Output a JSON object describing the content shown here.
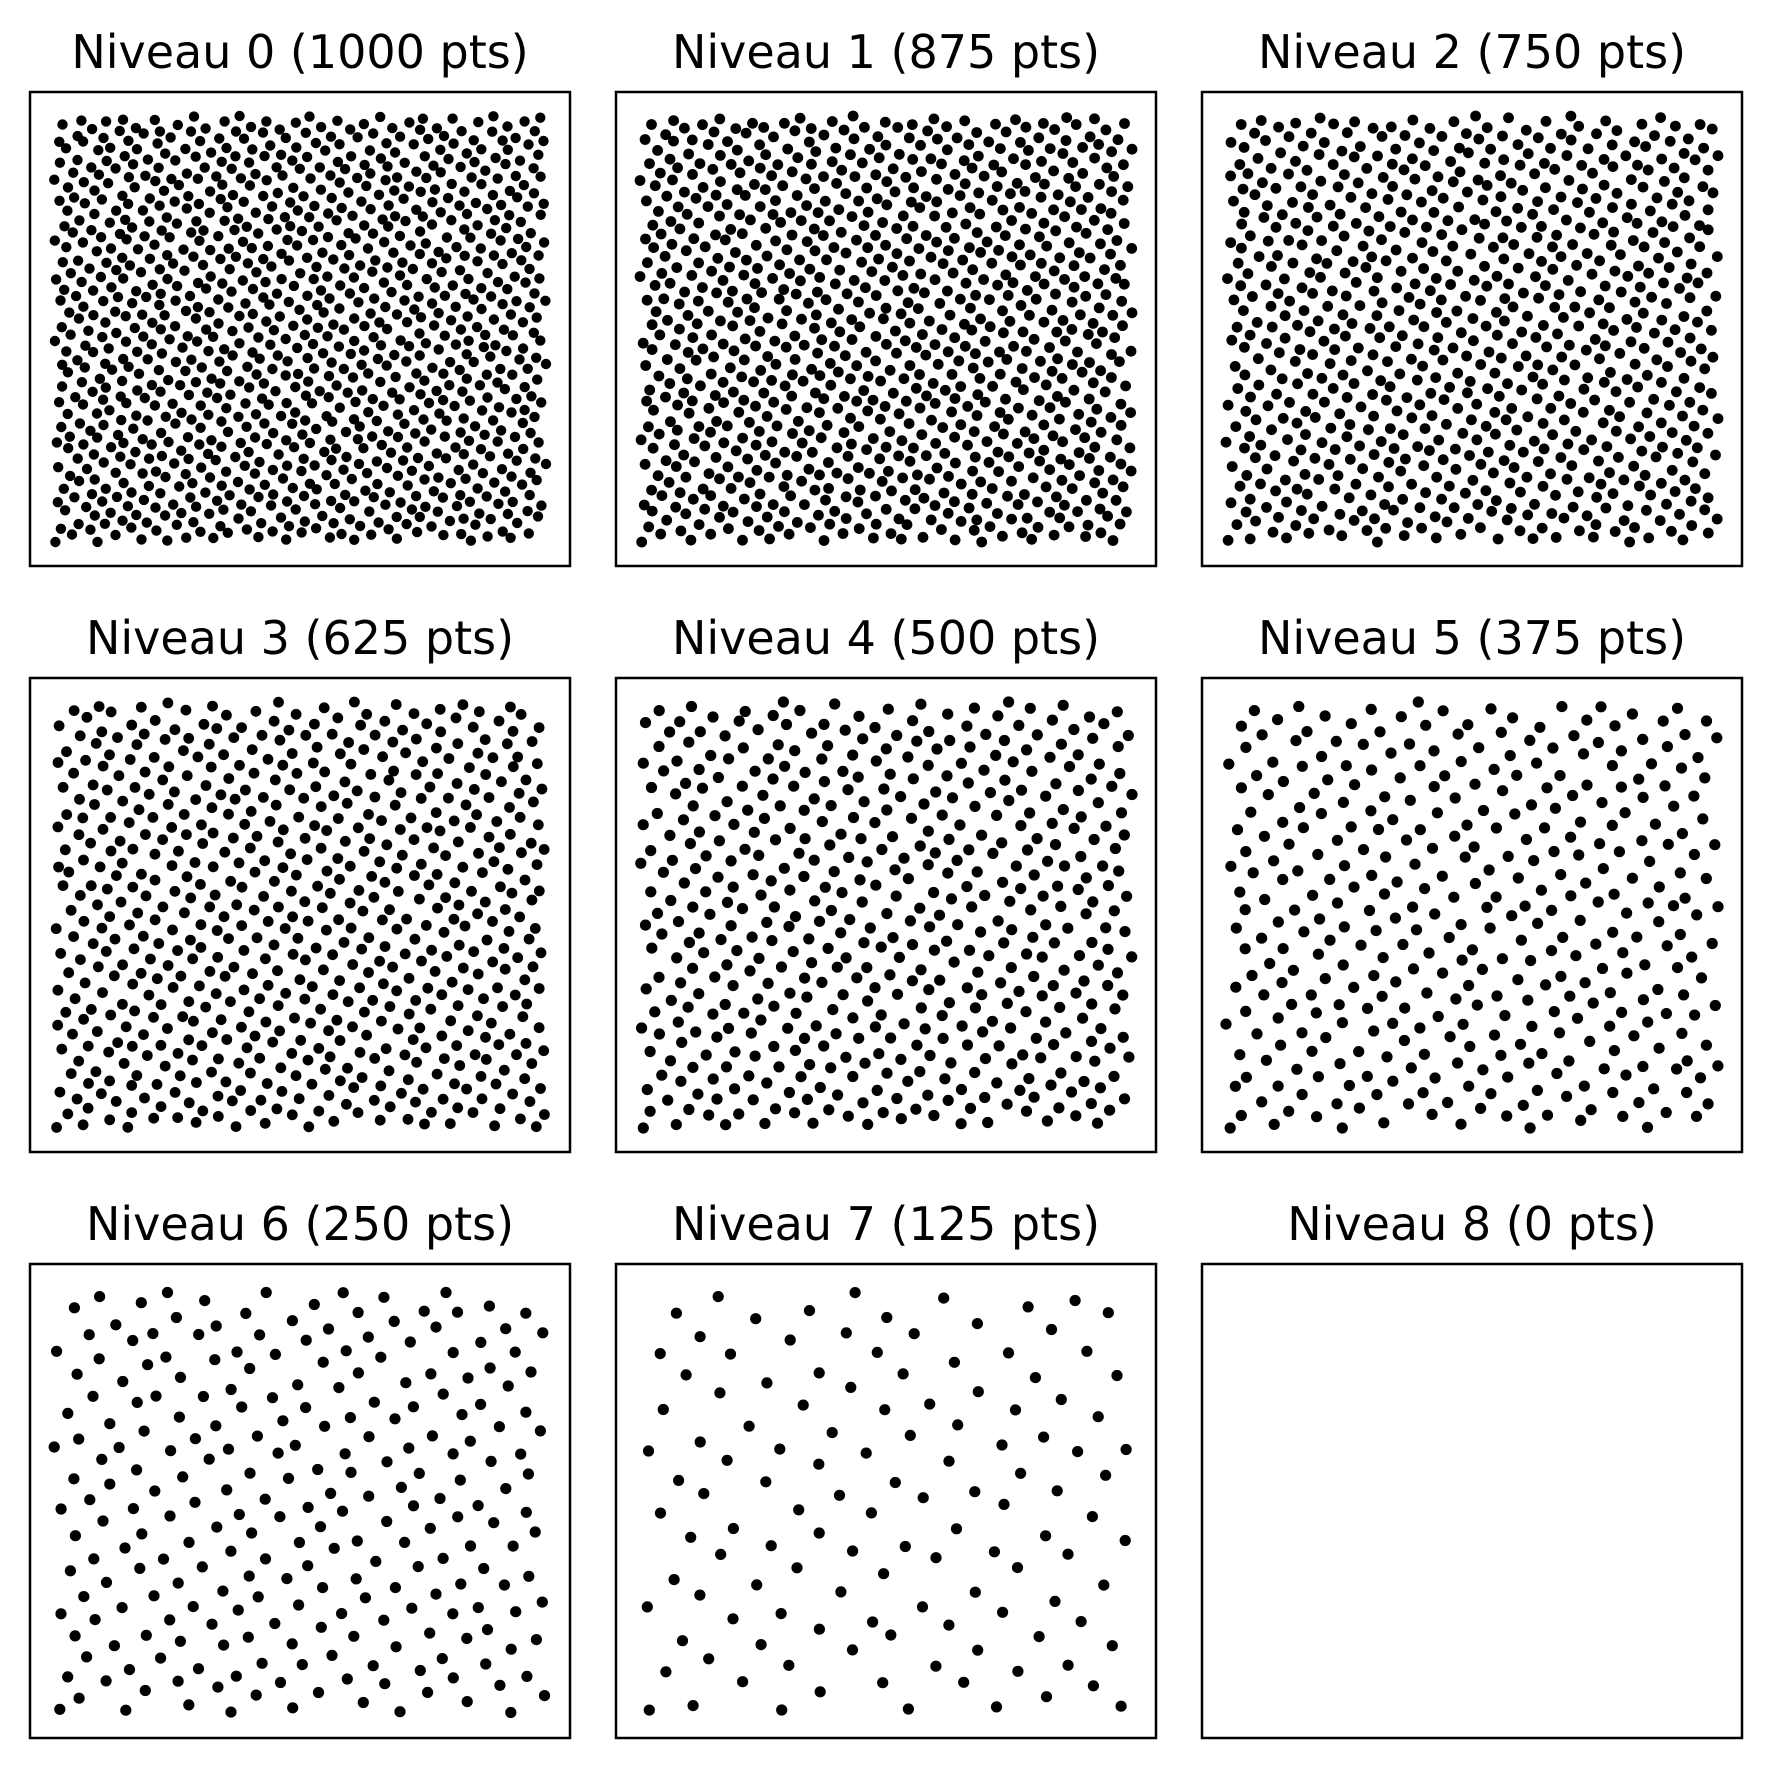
{
  "chart_data": {
    "type": "scatter",
    "layout": "3x3 grid of panels",
    "axes_visible": false,
    "grid": false,
    "marker_color": "#000000",
    "panels": [
      {
        "title": "Niveau 0 (1000 pts)",
        "n_points": 1000
      },
      {
        "title": "Niveau 1 (875 pts)",
        "n_points": 875
      },
      {
        "title": "Niveau 2 (750 pts)",
        "n_points": 750
      },
      {
        "title": "Niveau 3 (625 pts)",
        "n_points": 625
      },
      {
        "title": "Niveau 4 (500 pts)",
        "n_points": 500
      },
      {
        "title": "Niveau 5 (375 pts)",
        "n_points": 375
      },
      {
        "title": "Niveau 6 (250 pts)",
        "n_points": 250
      },
      {
        "title": "Niveau 7 (125 pts)",
        "n_points": 125
      },
      {
        "title": "Niveau 8 (0 pts)",
        "n_points": 0
      }
    ]
  }
}
